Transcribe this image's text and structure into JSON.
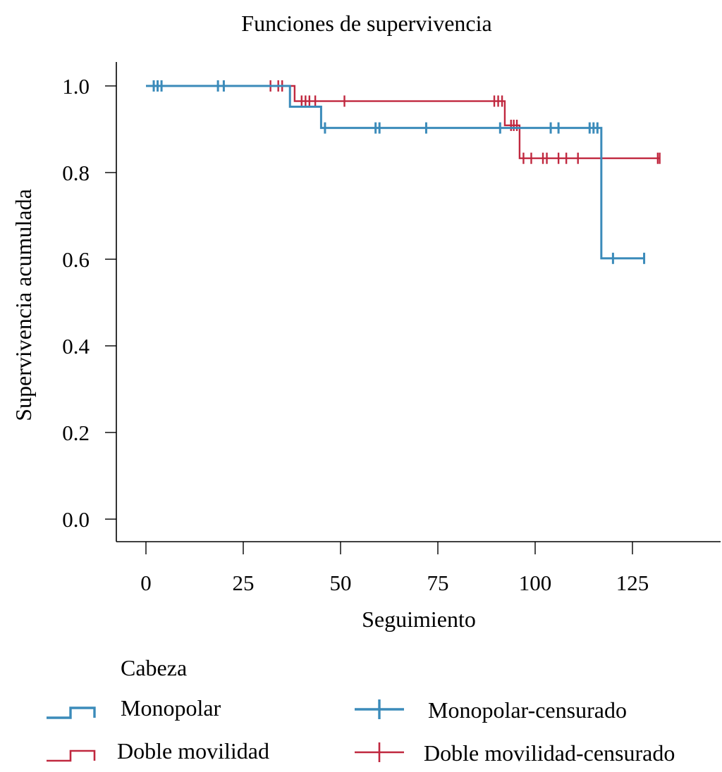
{
  "chart_data": {
    "type": "line",
    "subtype": "kaplan-meier-step",
    "title": "Funciones de supervivencia",
    "xlabel": "Seguimiento",
    "ylabel": "Supervivencia acumulada",
    "xlim": [
      -7.5,
      148
    ],
    "ylim": [
      -0.05,
      1.055
    ],
    "xticks": [
      0,
      25,
      50,
      75,
      100,
      125
    ],
    "xtick_labels": [
      "0",
      "25",
      "50",
      "75",
      "100",
      "125"
    ],
    "yticks": [
      0.0,
      0.2,
      0.4,
      0.6,
      0.8,
      1.0
    ],
    "ytick_labels": [
      "0.0",
      "0.2",
      "0.4",
      "0.6",
      "0.8",
      "1.0"
    ],
    "grid": false,
    "legend": {
      "title": "Cabeza",
      "placement": "bottom",
      "entries": [
        {
          "label": "Monopolar",
          "kind": "step",
          "series": 0
        },
        {
          "label": "Doble movilidad",
          "kind": "step",
          "series": 1
        },
        {
          "label": "Monopolar-censurado",
          "kind": "censor",
          "series": 0
        },
        {
          "label": "Doble movilidad-censurado",
          "kind": "censor",
          "series": 1
        }
      ]
    },
    "series": [
      {
        "name": "Monopolar",
        "color": "#3b8bba",
        "steps": [
          {
            "x": 0,
            "y": 1.0
          },
          {
            "x": 37,
            "y": 0.952
          },
          {
            "x": 45,
            "y": 0.903
          },
          {
            "x": 117,
            "y": 0.602
          }
        ],
        "end_x": 128,
        "censored": [
          2,
          3,
          4,
          18.5,
          20,
          46,
          59,
          60,
          72,
          91,
          104,
          106,
          114,
          115,
          116,
          120,
          128
        ]
      },
      {
        "name": "Doble movilidad",
        "color": "#c0283f",
        "steps": [
          {
            "x": 0,
            "y": 1.0
          },
          {
            "x": 38.2,
            "y": 0.965
          },
          {
            "x": 92.2,
            "y": 0.909
          },
          {
            "x": 96,
            "y": 0.833
          }
        ],
        "end_x": 132,
        "censored": [
          32,
          34,
          35,
          40,
          41,
          42,
          43.5,
          51,
          89.5,
          90.5,
          91.5,
          93.8,
          94.5,
          95.3,
          97,
          99,
          102,
          103,
          106,
          108,
          111,
          131.5,
          132
        ]
      }
    ]
  }
}
